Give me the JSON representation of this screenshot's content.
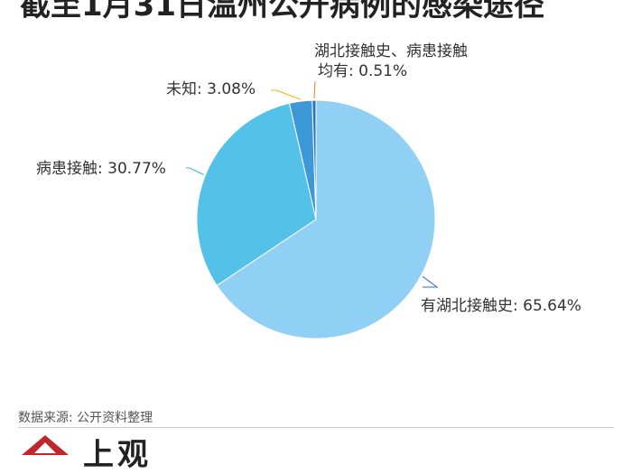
{
  "header": {
    "title": "截至1月31日温州公开病例的感染途径"
  },
  "chart_data": {
    "type": "pie",
    "title": "截至1月31日温州公开病例的感染途径",
    "slices": [
      {
        "label_lines": [
          "有湖北接触史: 65.64%"
        ],
        "value": 65.64,
        "color": "#8fd0f4",
        "line_color": "#3a5fcd"
      },
      {
        "label_lines": [
          "病患接触: 30.77%"
        ],
        "value": 30.77,
        "color": "#54c1e9",
        "line_color": "#3bb5dc"
      },
      {
        "label_lines": [
          "未知: 3.08%"
        ],
        "value": 3.08,
        "color": "#3d98d8",
        "line_color": "#f0b400"
      },
      {
        "label_lines": [
          "湖北接触史、病患接触",
          "均有: 0.51%"
        ],
        "value": 0.51,
        "color": "#2f6fc4",
        "line_color": "#f07c28"
      }
    ]
  },
  "footer": {
    "source": "数据来源: 公开资料整理",
    "brand": "上观",
    "logo_color": "#c0272d"
  }
}
